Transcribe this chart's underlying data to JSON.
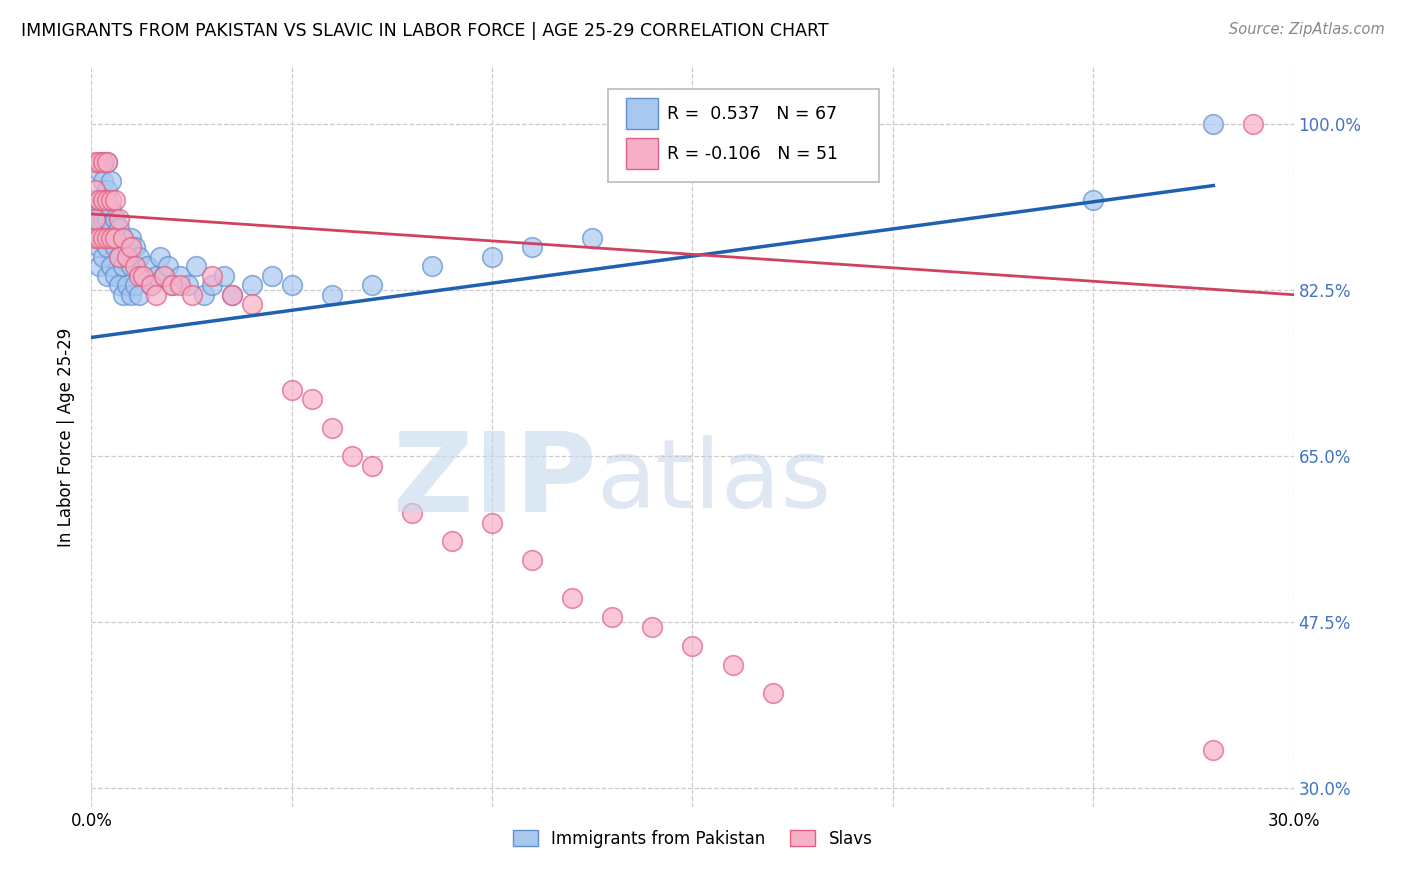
{
  "title": "IMMIGRANTS FROM PAKISTAN VS SLAVIC IN LABOR FORCE | AGE 25-29 CORRELATION CHART",
  "source": "Source: ZipAtlas.com",
  "ylabel": "In Labor Force | Age 25-29",
  "xlim": [
    0.0,
    0.3
  ],
  "ylim": [
    0.28,
    1.06
  ],
  "ytick_vals": [
    1.0,
    0.825,
    0.65,
    0.475,
    0.3
  ],
  "ytick_labels": [
    "100.0%",
    "82.5%",
    "65.0%",
    "47.5%",
    "30.0%"
  ],
  "xtick_vals": [
    0.0,
    0.05,
    0.1,
    0.15,
    0.2,
    0.25,
    0.3
  ],
  "xtick_labels": [
    "0.0%",
    "",
    "",
    "",
    "",
    "",
    "30.0%"
  ],
  "pakistan_color": "#a8c8f0",
  "slavic_color": "#f8b0c8",
  "pakistan_edge": "#6090d0",
  "slavic_edge": "#e06080",
  "trendline_pak_color": "#2060b0",
  "trendline_slav_color": "#d04060",
  "R_pakistan": 0.537,
  "N_pakistan": 67,
  "R_slavic": -0.106,
  "N_slavic": 51,
  "background_color": "#ffffff",
  "grid_color": "#cccccc",
  "right_label_color": "#4472c4",
  "pak_x": [
    0.001,
    0.001,
    0.001,
    0.002,
    0.002,
    0.002,
    0.002,
    0.002,
    0.003,
    0.003,
    0.003,
    0.003,
    0.003,
    0.003,
    0.004,
    0.004,
    0.004,
    0.004,
    0.004,
    0.005,
    0.005,
    0.005,
    0.005,
    0.006,
    0.006,
    0.006,
    0.007,
    0.007,
    0.007,
    0.008,
    0.008,
    0.008,
    0.009,
    0.009,
    0.01,
    0.01,
    0.01,
    0.011,
    0.011,
    0.012,
    0.012,
    0.013,
    0.014,
    0.015,
    0.016,
    0.017,
    0.018,
    0.019,
    0.02,
    0.022,
    0.024,
    0.026,
    0.028,
    0.03,
    0.033,
    0.035,
    0.04,
    0.045,
    0.05,
    0.06,
    0.07,
    0.085,
    0.1,
    0.11,
    0.125,
    0.25,
    0.28
  ],
  "pak_y": [
    0.88,
    0.9,
    0.92,
    0.85,
    0.87,
    0.9,
    0.92,
    0.95,
    0.86,
    0.88,
    0.9,
    0.92,
    0.94,
    0.96,
    0.84,
    0.87,
    0.9,
    0.93,
    0.96,
    0.85,
    0.88,
    0.91,
    0.94,
    0.84,
    0.87,
    0.9,
    0.83,
    0.86,
    0.89,
    0.82,
    0.85,
    0.88,
    0.83,
    0.87,
    0.82,
    0.85,
    0.88,
    0.83,
    0.87,
    0.82,
    0.86,
    0.84,
    0.85,
    0.83,
    0.84,
    0.86,
    0.84,
    0.85,
    0.83,
    0.84,
    0.83,
    0.85,
    0.82,
    0.83,
    0.84,
    0.82,
    0.83,
    0.84,
    0.83,
    0.82,
    0.83,
    0.85,
    0.86,
    0.87,
    0.88,
    0.92,
    1.0
  ],
  "slav_x": [
    0.001,
    0.001,
    0.001,
    0.001,
    0.002,
    0.002,
    0.002,
    0.003,
    0.003,
    0.003,
    0.004,
    0.004,
    0.004,
    0.005,
    0.005,
    0.006,
    0.006,
    0.007,
    0.007,
    0.008,
    0.009,
    0.01,
    0.011,
    0.012,
    0.013,
    0.015,
    0.016,
    0.018,
    0.02,
    0.022,
    0.025,
    0.03,
    0.035,
    0.04,
    0.05,
    0.055,
    0.06,
    0.065,
    0.07,
    0.08,
    0.09,
    0.1,
    0.11,
    0.12,
    0.13,
    0.14,
    0.15,
    0.16,
    0.17,
    0.28,
    0.29
  ],
  "slav_y": [
    0.88,
    0.9,
    0.93,
    0.96,
    0.88,
    0.92,
    0.96,
    0.88,
    0.92,
    0.96,
    0.88,
    0.92,
    0.96,
    0.88,
    0.92,
    0.88,
    0.92,
    0.86,
    0.9,
    0.88,
    0.86,
    0.87,
    0.85,
    0.84,
    0.84,
    0.83,
    0.82,
    0.84,
    0.83,
    0.83,
    0.82,
    0.84,
    0.82,
    0.81,
    0.72,
    0.71,
    0.68,
    0.65,
    0.64,
    0.59,
    0.56,
    0.58,
    0.54,
    0.5,
    0.48,
    0.47,
    0.45,
    0.43,
    0.4,
    0.34,
    1.0
  ],
  "pak_trend_x0": 0.0,
  "pak_trend_y0": 0.775,
  "pak_trend_x1": 0.28,
  "pak_trend_y1": 0.935,
  "slav_trend_x0": 0.0,
  "slav_trend_y0": 0.905,
  "slav_trend_x1": 0.3,
  "slav_trend_y1": 0.82
}
